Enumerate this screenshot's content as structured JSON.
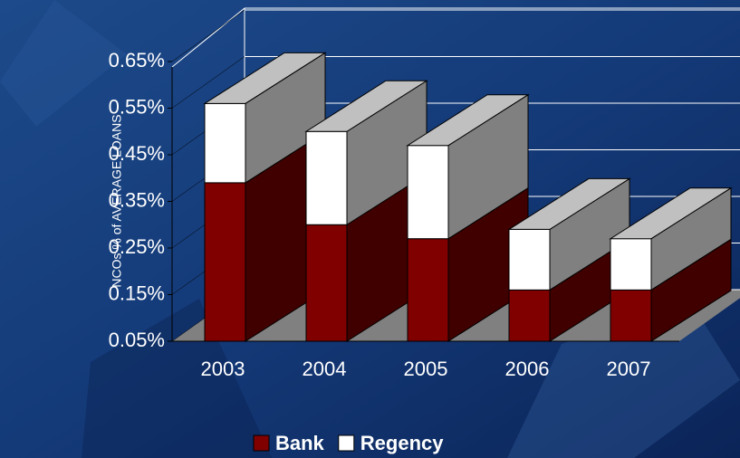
{
  "chart_data": {
    "type": "bar3d_stacked",
    "y_label": "NCOs % of AVERAGE LOANS",
    "categories": [
      "2003",
      "2004",
      "2005",
      "2006",
      "2007"
    ],
    "series": [
      {
        "name": "Bank",
        "color": "#800000",
        "values": [
          0.39,
          0.3,
          0.27,
          0.16,
          0.16
        ]
      },
      {
        "name": "Regency",
        "color": "#ffffff",
        "values": [
          0.17,
          0.2,
          0.2,
          0.13,
          0.11
        ]
      }
    ],
    "ylim": [
      0.05,
      0.65
    ],
    "yticks": [
      {
        "value": 0.05,
        "label": "0.05%"
      },
      {
        "value": 0.15,
        "label": "0.15%"
      },
      {
        "value": 0.25,
        "label": "0.25%"
      },
      {
        "value": 0.35,
        "label": "0.35%"
      },
      {
        "value": 0.45,
        "label": "0.45%"
      },
      {
        "value": 0.55,
        "label": "0.55%"
      },
      {
        "value": 0.65,
        "label": "0.65%"
      }
    ],
    "grid": true
  }
}
